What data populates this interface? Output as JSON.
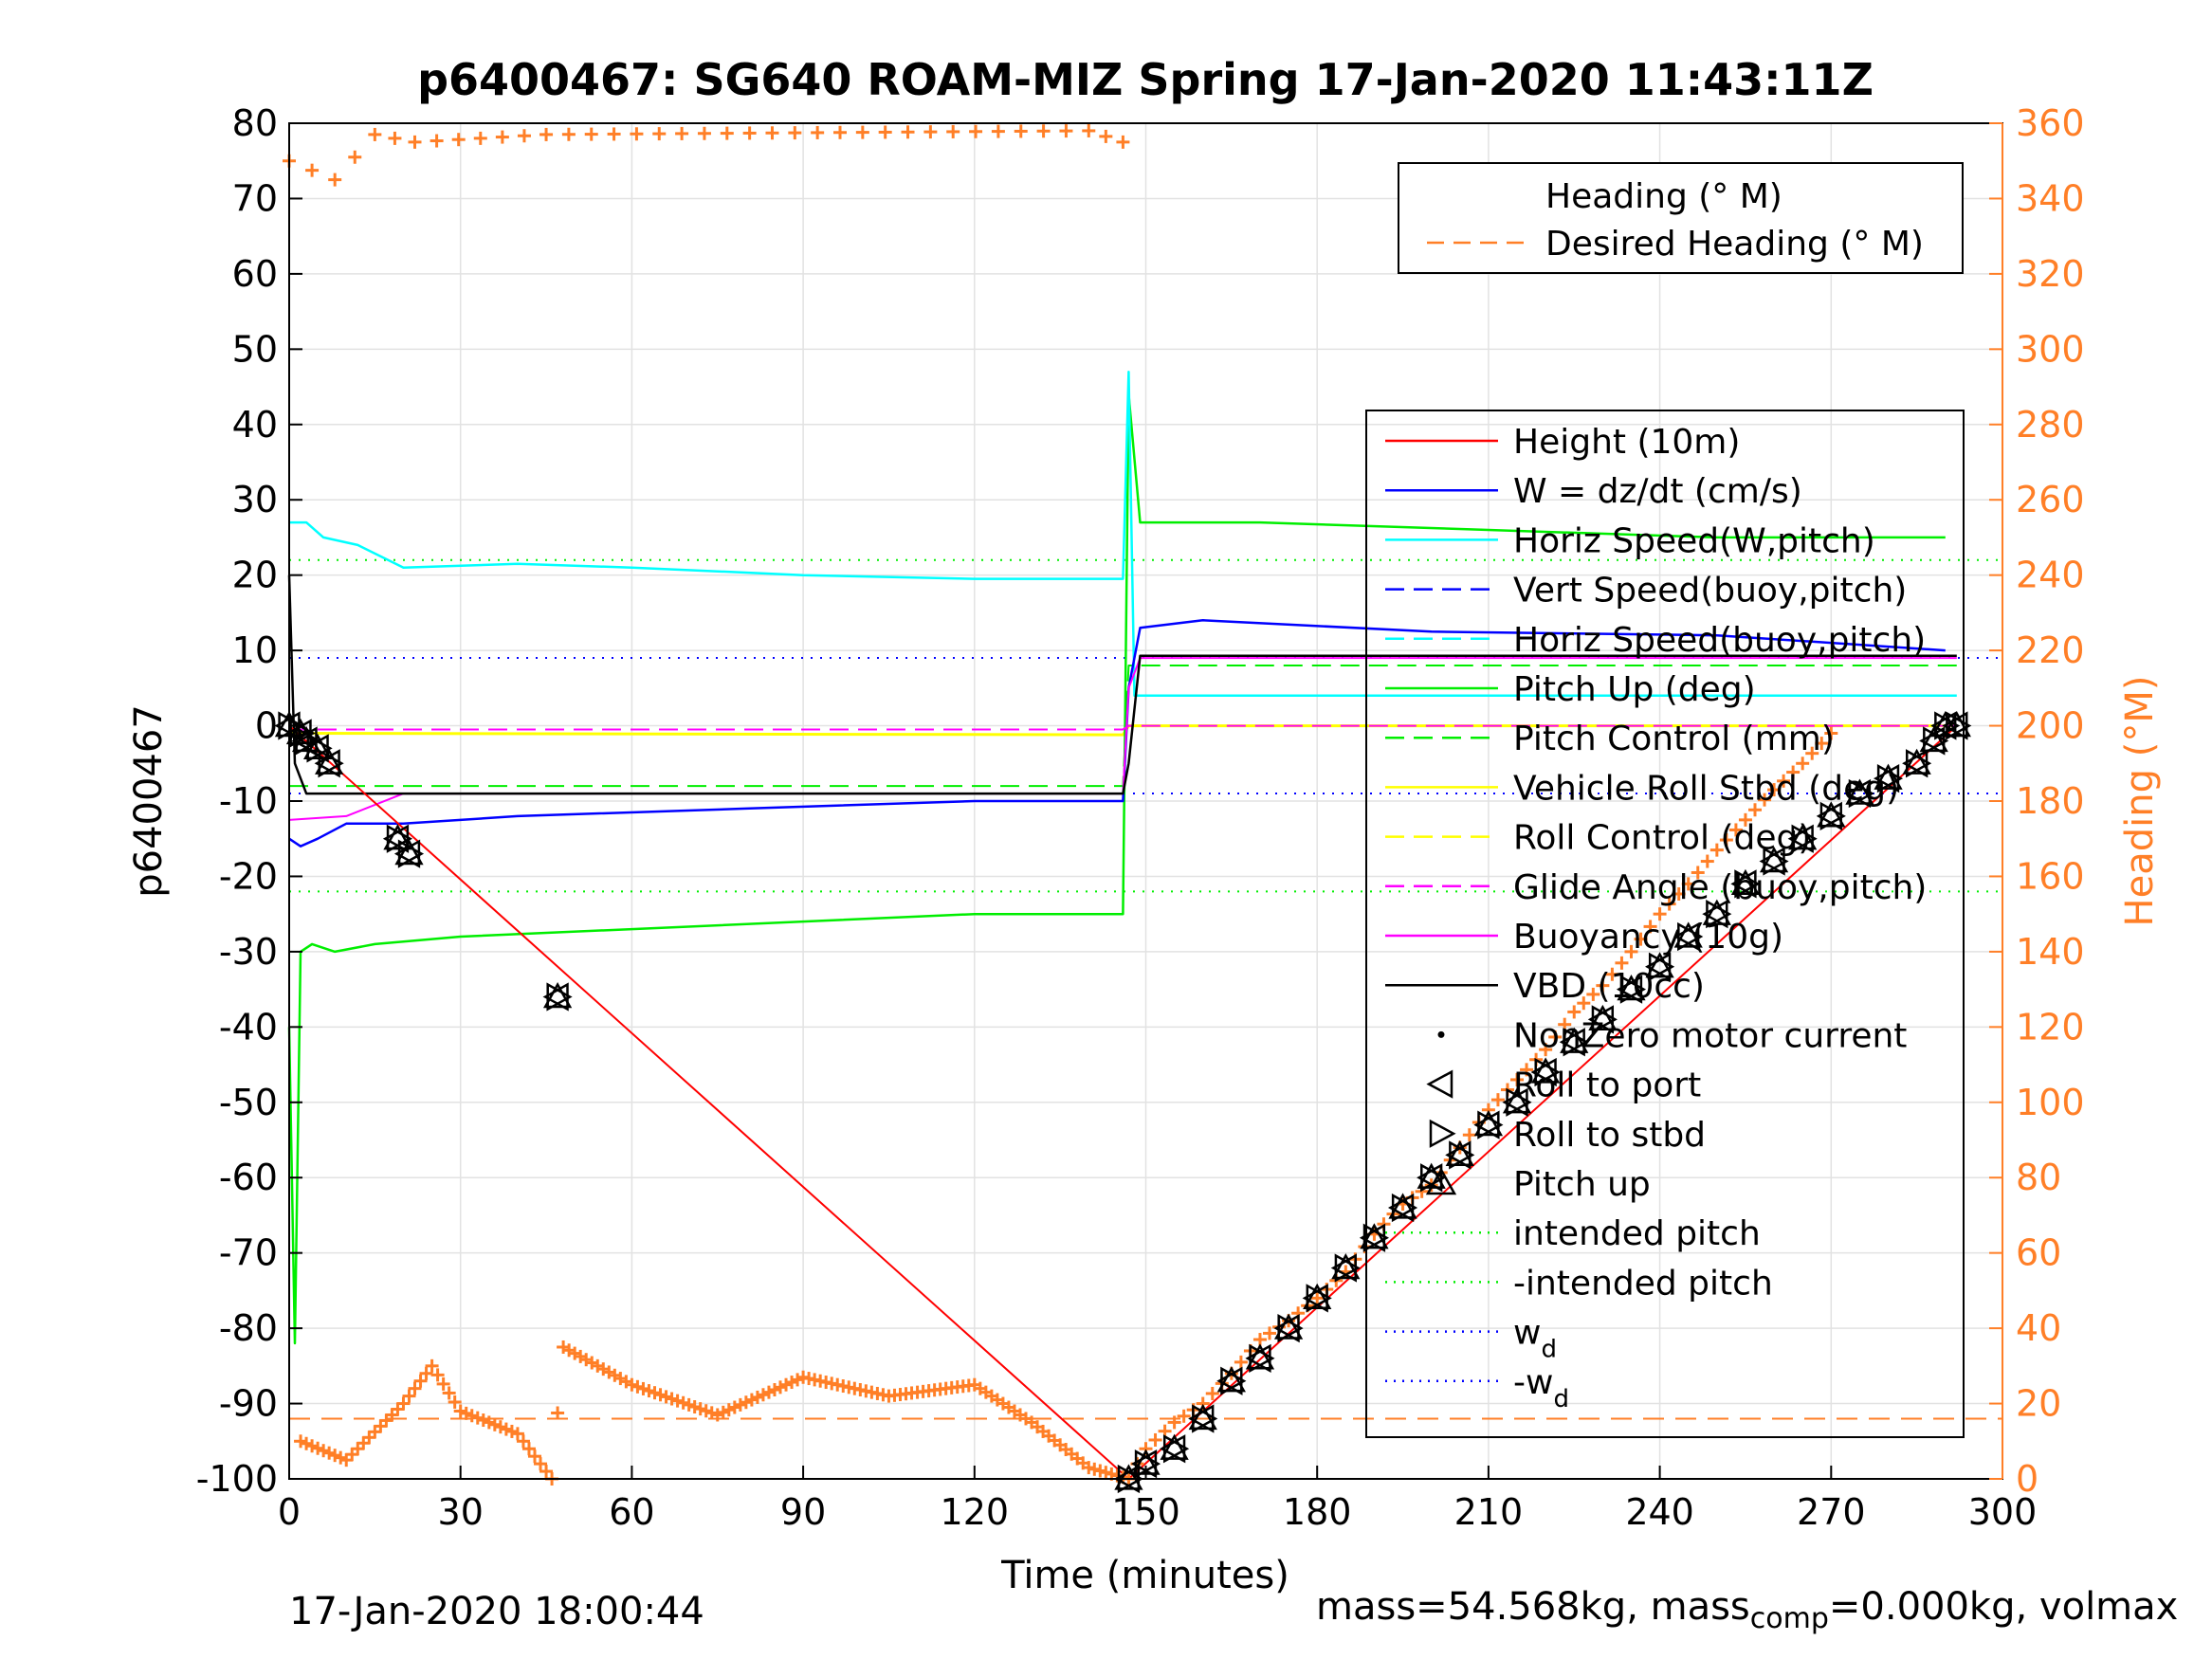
{
  "chart_data": {
    "type": "line",
    "title": "p6400467: SG640 ROAM-MIZ Spring 17-Jan-2020 11:43:11Z",
    "xlabel": "Time (minutes)",
    "ylabel": "p6400467",
    "y2label": "Heading (°M)",
    "xlim": [
      0,
      300
    ],
    "ylim": [
      -100,
      80
    ],
    "y2lim": [
      0,
      360
    ],
    "xticks": [
      "0",
      "30",
      "60",
      "90",
      "120",
      "150",
      "180",
      "210",
      "240",
      "270",
      "300"
    ],
    "yticks": [
      "80",
      "70",
      "60",
      "50",
      "40",
      "30",
      "20",
      "10",
      "0",
      "-10",
      "-20",
      "-30",
      "-40",
      "-50",
      "-60",
      "-70",
      "-80",
      "-90",
      "-100"
    ],
    "y2ticks": [
      "360",
      "340",
      "320",
      "300",
      "280",
      "260",
      "240",
      "220",
      "200",
      "180",
      "160",
      "140",
      "120",
      "100",
      "80",
      "60",
      "40",
      "20",
      "0"
    ],
    "grid": true,
    "colors": {
      "height": "#ff0000",
      "w": "#0000ff",
      "horiz_speed": "#00ffff",
      "pitch": "#00ee00",
      "roll": "#ffff00",
      "glide": "#ff00ff",
      "vbd": "#000000",
      "heading": "#ff7f27",
      "axis2": "#ff7f27"
    },
    "legend_heading": {
      "placement": "top-right",
      "entries": [
        "Heading (° M)",
        "Desired Heading (° M)"
      ]
    },
    "legend_main": {
      "placement": "right",
      "entries": [
        {
          "label": "Height (10m)",
          "color": "#ff0000",
          "style": "solid"
        },
        {
          "label": "W = dz/dt (cm/s)",
          "color": "#0000ff",
          "style": "solid"
        },
        {
          "label": "Horiz Speed(W,pitch)",
          "color": "#00ffff",
          "style": "solid"
        },
        {
          "label": "Vert Speed(buoy,pitch)",
          "color": "#0000ff",
          "style": "dashed"
        },
        {
          "label": "Horiz Speed(buoy,pitch)",
          "color": "#00ffff",
          "style": "dashed"
        },
        {
          "label": "Pitch Up (deg)",
          "color": "#00ee00",
          "style": "solid"
        },
        {
          "label": "Pitch Control (mm)",
          "color": "#00ee00",
          "style": "dashed"
        },
        {
          "label": "Vehicle Roll Stbd (deg)",
          "color": "#ffff00",
          "style": "solid"
        },
        {
          "label": "Roll Control (deg)",
          "color": "#ffff00",
          "style": "dashed"
        },
        {
          "label": "Glide Angle (buoy,pitch)",
          "color": "#ff00ff",
          "style": "dashed"
        },
        {
          "label": "Buoyancy (10g)",
          "color": "#ff00ff",
          "style": "solid"
        },
        {
          "label": "VBD (10cc)",
          "color": "#000000",
          "style": "solid"
        },
        {
          "label": "NonZero motor current",
          "color": "#000000",
          "style": "dot"
        },
        {
          "label": "Roll to port",
          "color": "#000000",
          "style": "tri-left"
        },
        {
          "label": "Roll to stbd",
          "color": "#000000",
          "style": "tri-right"
        },
        {
          "label": "Pitch up",
          "color": "#000000",
          "style": "tri-up"
        },
        {
          "label": "intended pitch",
          "color": "#00ee00",
          "style": "dotted"
        },
        {
          "label": "-intended pitch",
          "color": "#00ee00",
          "style": "dotted"
        },
        {
          "label": "w",
          "sub": "d",
          "color": "#0000ff",
          "style": "dotted"
        },
        {
          "label": "-w",
          "sub": "d",
          "color": "#0000ff",
          "style": "dotted"
        }
      ]
    },
    "reference_lines": {
      "intended_pitch": 22,
      "minus_intended_pitch": -22,
      "w_d": 9,
      "minus_w_d": -9,
      "desired_heading_deg": 16
    },
    "series": {
      "height": [
        [
          0,
          0
        ],
        [
          147,
          -100
        ],
        [
          292,
          0
        ]
      ],
      "vbd": [
        [
          0,
          20
        ],
        [
          1,
          -5
        ],
        [
          3,
          -9
        ],
        [
          146,
          -9
        ],
        [
          147,
          -5
        ],
        [
          149,
          9.3
        ],
        [
          292,
          9.3
        ]
      ],
      "w": [
        [
          0,
          -15
        ],
        [
          2,
          -16
        ],
        [
          5,
          -15
        ],
        [
          10,
          -13
        ],
        [
          20,
          -13
        ],
        [
          40,
          -12
        ],
        [
          80,
          -11
        ],
        [
          120,
          -10
        ],
        [
          146,
          -10
        ],
        [
          147,
          5
        ],
        [
          149,
          13
        ],
        [
          160,
          14
        ],
        [
          200,
          12.5
        ],
        [
          250,
          12
        ],
        [
          290,
          10
        ]
      ],
      "horiz_speed": [
        [
          0,
          27
        ],
        [
          3,
          27
        ],
        [
          6,
          25
        ],
        [
          12,
          24
        ],
        [
          20,
          21
        ],
        [
          40,
          21.5
        ],
        [
          60,
          21
        ],
        [
          90,
          20
        ],
        [
          120,
          19.5
        ],
        [
          146,
          19.5
        ],
        [
          147,
          47
        ],
        [
          148,
          4
        ],
        [
          292,
          4
        ]
      ],
      "pitch_up": [
        [
          0,
          -40
        ],
        [
          1,
          -82
        ],
        [
          2,
          -30
        ],
        [
          4,
          -29
        ],
        [
          8,
          -30
        ],
        [
          15,
          -29
        ],
        [
          30,
          -28
        ],
        [
          60,
          -27
        ],
        [
          90,
          -26
        ],
        [
          120,
          -25
        ],
        [
          146,
          -25
        ],
        [
          147,
          44
        ],
        [
          149,
          27
        ],
        [
          170,
          27
        ],
        [
          210,
          26
        ],
        [
          250,
          25
        ],
        [
          290,
          25
        ]
      ],
      "pitch_control": [
        [
          0,
          -8
        ],
        [
          146,
          -8
        ],
        [
          147,
          8
        ],
        [
          292,
          8
        ]
      ],
      "roll_stbd": [
        [
          0,
          -1
        ],
        [
          146,
          -1.2
        ],
        [
          147,
          0
        ],
        [
          292,
          0
        ]
      ],
      "roll_control": [
        [
          0,
          -0.5
        ],
        [
          146,
          -0.5
        ],
        [
          147,
          0
        ],
        [
          292,
          0
        ]
      ],
      "glide": [
        [
          0,
          -0.5
        ],
        [
          146,
          -0.5
        ],
        [
          147,
          0
        ],
        [
          292,
          0
        ]
      ],
      "buoyancy": [
        [
          0,
          -12.5
        ],
        [
          10,
          -12
        ],
        [
          20,
          -9
        ],
        [
          146,
          -9
        ],
        [
          147,
          5
        ],
        [
          149,
          9
        ],
        [
          292,
          9
        ]
      ],
      "heading_low": [
        [
          2,
          10
        ],
        [
          10,
          5
        ],
        [
          20,
          20
        ],
        [
          25,
          30
        ],
        [
          30,
          18
        ],
        [
          40,
          12
        ],
        [
          46,
          0
        ],
        [
          48,
          35
        ],
        [
          60,
          25
        ],
        [
          75,
          17
        ],
        [
          90,
          27
        ],
        [
          105,
          22
        ],
        [
          120,
          25
        ],
        [
          130,
          15
        ],
        [
          140,
          3
        ],
        [
          147,
          0
        ]
      ],
      "heading_up": [
        [
          147,
          0
        ],
        [
          150,
          8
        ],
        [
          155,
          15
        ],
        [
          160,
          20
        ],
        [
          165,
          28
        ],
        [
          170,
          37
        ],
        [
          175,
          42
        ],
        [
          180,
          48
        ],
        [
          185,
          55
        ],
        [
          190,
          65
        ],
        [
          195,
          73
        ],
        [
          200,
          78
        ],
        [
          205,
          88
        ],
        [
          210,
          98
        ],
        [
          215,
          106
        ],
        [
          220,
          114
        ],
        [
          225,
          124
        ],
        [
          230,
          131
        ],
        [
          235,
          140
        ],
        [
          240,
          150
        ],
        [
          245,
          158
        ],
        [
          250,
          167
        ],
        [
          255,
          175
        ],
        [
          260,
          183
        ],
        [
          265,
          190
        ],
        [
          270,
          198
        ]
      ],
      "heading_top": [
        [
          0,
          350
        ],
        [
          8,
          345
        ],
        [
          15,
          357
        ],
        [
          22,
          355
        ],
        [
          45,
          357
        ],
        [
          140,
          358
        ],
        [
          146,
          355
        ]
      ],
      "markers_down": [
        [
          0,
          0
        ],
        [
          2,
          -1
        ],
        [
          3,
          -2
        ],
        [
          5,
          -3
        ],
        [
          7,
          -5
        ],
        [
          19,
          -15
        ],
        [
          21,
          -17
        ],
        [
          47,
          -36
        ]
      ],
      "markers_up": [
        [
          147,
          -100
        ],
        [
          150,
          -98
        ],
        [
          155,
          -96
        ],
        [
          160,
          -92
        ],
        [
          165,
          -87
        ],
        [
          170,
          -84
        ],
        [
          175,
          -80
        ],
        [
          180,
          -76
        ],
        [
          185,
          -72
        ],
        [
          190,
          -68
        ],
        [
          195,
          -64
        ],
        [
          200,
          -60
        ],
        [
          205,
          -57
        ],
        [
          210,
          -53
        ],
        [
          215,
          -50
        ],
        [
          220,
          -46
        ],
        [
          225,
          -42
        ],
        [
          230,
          -39
        ],
        [
          235,
          -35
        ],
        [
          240,
          -32
        ],
        [
          245,
          -28
        ],
        [
          250,
          -25
        ],
        [
          255,
          -21
        ],
        [
          260,
          -18
        ],
        [
          265,
          -15
        ],
        [
          270,
          -12
        ],
        [
          275,
          -9
        ],
        [
          280,
          -7
        ],
        [
          285,
          -5
        ],
        [
          288,
          -2
        ],
        [
          290,
          0
        ],
        [
          292,
          0
        ]
      ]
    }
  },
  "footer": {
    "timestamp": "17-Jan-2020 18:00:44",
    "mass_text_prefix": "mass=54.568kg, mass",
    "mass_sub": "comp",
    "mass_text_suffix": "=0.000kg, volmax"
  }
}
